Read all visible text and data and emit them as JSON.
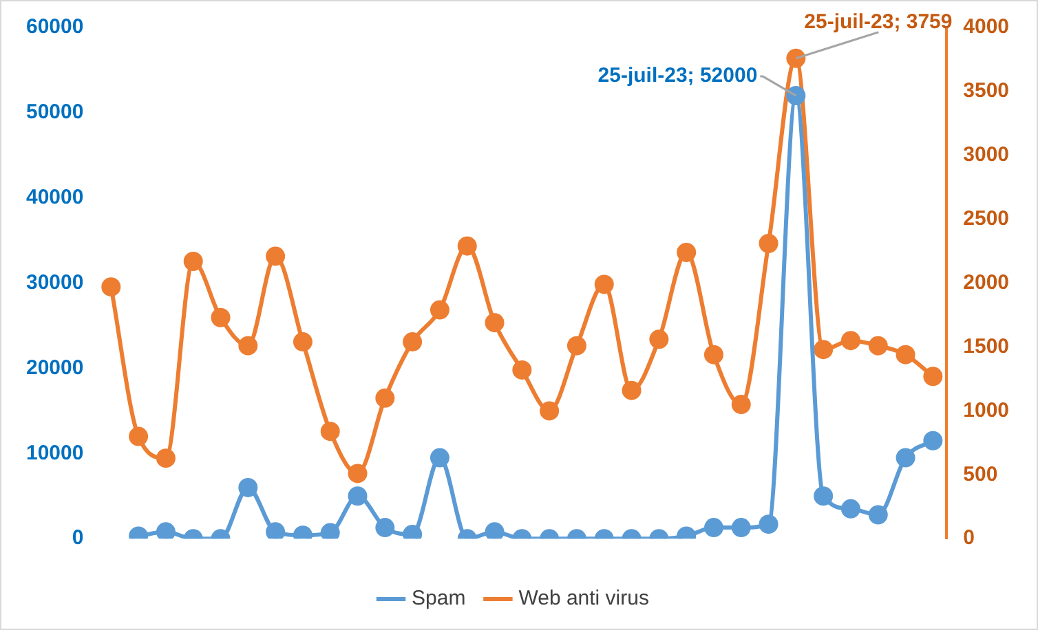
{
  "chart_data": {
    "type": "line",
    "categories": [
      null,
      null,
      null,
      null,
      null,
      null,
      null,
      null,
      null,
      null,
      null,
      null,
      null,
      null,
      null,
      null,
      null,
      null,
      null,
      null,
      null,
      null,
      null,
      null,
      null,
      null,
      null,
      null,
      null,
      null,
      null
    ],
    "series": [
      {
        "name": "Spam",
        "color": "#5b9bd5",
        "values": [
          null,
          300,
          800,
          0,
          0,
          6000,
          800,
          400,
          700,
          5000,
          1300,
          500,
          9500,
          0,
          800,
          0,
          0,
          0,
          0,
          0,
          0,
          300,
          1300,
          1300,
          1700,
          52000,
          5000,
          3500,
          2800,
          9500,
          11500
        ],
        "value_labels": [
          null,
          null,
          null,
          null,
          null,
          null,
          null,
          null,
          null,
          null,
          null,
          null,
          null,
          null,
          null,
          null,
          null,
          null,
          null,
          null,
          null,
          null,
          null,
          null,
          null,
          "25-juil-23; 52000",
          null,
          null,
          null,
          null,
          null
        ]
      },
      {
        "name": "Web anti virus",
        "color": "#ed7d31",
        "axis": "y2",
        "values": [
          1970,
          800,
          630,
          2170,
          1730,
          1510,
          2210,
          1540,
          840,
          510,
          1100,
          1540,
          1790,
          2290,
          1690,
          1320,
          1000,
          1510,
          1990,
          1160,
          1560,
          2240,
          1440,
          1050,
          2310,
          3759,
          1480,
          1550,
          1510,
          1440,
          1270
        ],
        "value_labels": [
          null,
          null,
          null,
          null,
          null,
          null,
          null,
          null,
          null,
          null,
          null,
          null,
          null,
          null,
          null,
          null,
          null,
          null,
          null,
          null,
          null,
          null,
          null,
          null,
          null,
          "25-juil-23; 3759",
          null,
          null,
          null,
          null,
          null
        ]
      }
    ],
    "ylim": [
      0,
      60000
    ],
    "yticks": [
      0,
      10000,
      20000,
      30000,
      40000,
      50000,
      60000
    ],
    "y2lim": [
      0,
      4000
    ],
    "y2ticks": [
      0,
      500,
      1000,
      1500,
      2000,
      2500,
      3000,
      3500,
      4000
    ],
    "legend": "bottom",
    "grid": false,
    "marker": "circle",
    "line_style": "solid"
  }
}
